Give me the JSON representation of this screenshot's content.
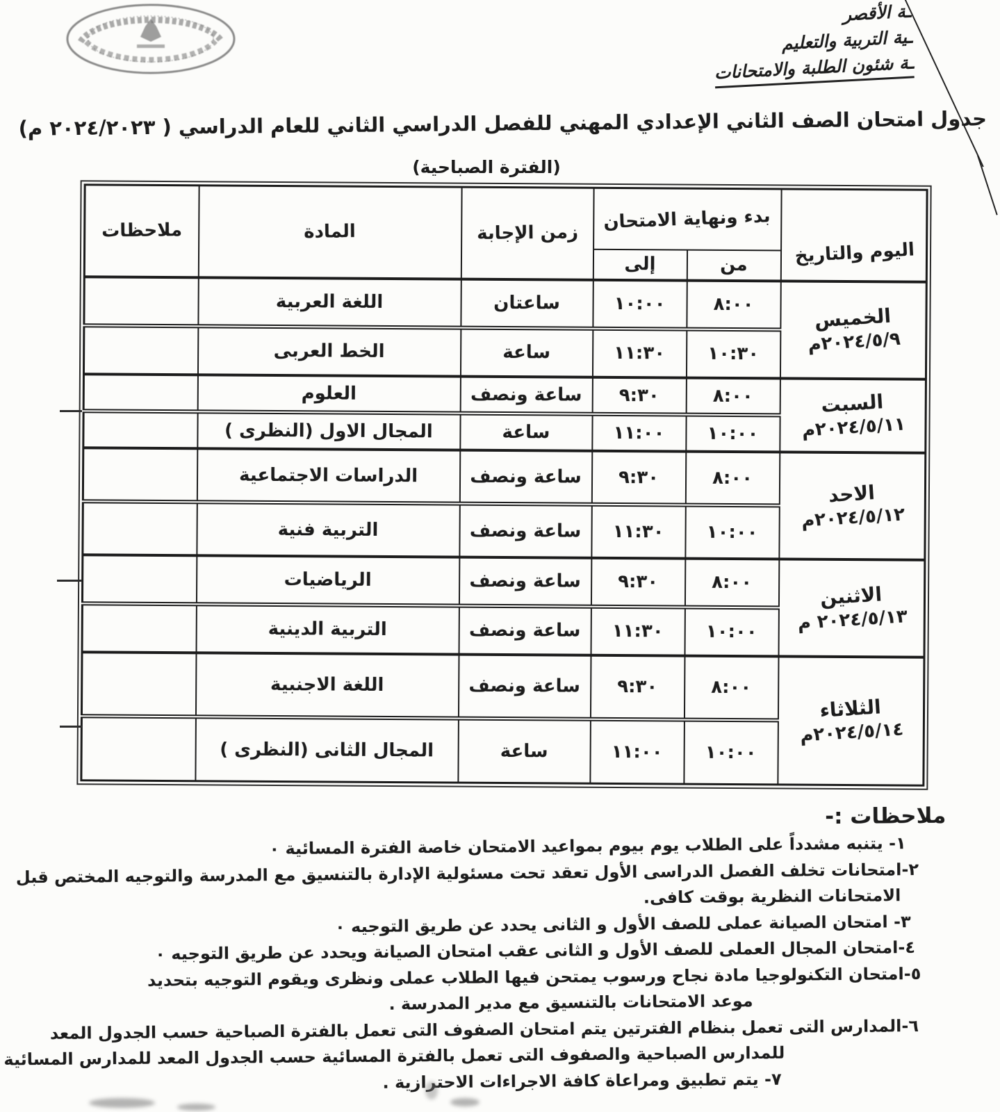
{
  "colors": {
    "ink": "#1c1c1c",
    "paper": "#fcfcfa"
  },
  "letterhead": {
    "lines": [
      "ـة الأقصر",
      "ـية التربية والتعليم",
      "ـة شئون الطلبة والامتحانات"
    ]
  },
  "stamp": {
    "icon": "official-oval-seal-with-eagle-emblem"
  },
  "title": "جدول امتحان الصف الثاني الإعدادي المهني  للفصل الدراسي الثاني للعام الدراسي ( ٢٠٢٤/٢٠٢٣ م)",
  "subtitle": "(الفترة الصباحية)",
  "table": {
    "headers": {
      "day": "اليوم والتاريخ",
      "exam_window": "بدء ونهاية الامتحان",
      "from": "من",
      "to": "إلى",
      "duration": "زمن الإجابة",
      "subject": "المادة",
      "notes": "ملاحظات"
    },
    "days": [
      {
        "name": "الخميس",
        "date": "٢٠٢٤/٥/٩م",
        "exams": [
          {
            "subject": "اللغة العربية",
            "duration": "ساعتان",
            "from": "٨:٠٠",
            "to": "١٠:٠٠",
            "notes": ""
          },
          {
            "subject": "الخط العربى",
            "duration": "ساعة",
            "from": "١٠:٣٠",
            "to": "١١:٣٠",
            "notes": ""
          }
        ]
      },
      {
        "name": "السبت",
        "date": "٢٠٢٤/٥/١١م",
        "exams": [
          {
            "subject": "العلوم",
            "duration": "ساعة ونصف",
            "from": "٨:٠٠",
            "to": "٩:٣٠",
            "notes": ""
          },
          {
            "subject": "المجال الاول (النظرى )",
            "duration": "ساعة",
            "from": "١٠:٠٠",
            "to": "١١:٠٠",
            "notes": ""
          }
        ]
      },
      {
        "name": "الاحد",
        "date": "٢٠٢٤/٥/١٢م",
        "exams": [
          {
            "subject": "الدراسات الاجتماعية",
            "duration": "ساعة ونصف",
            "from": "٨:٠٠",
            "to": "٩:٣٠",
            "notes": ""
          },
          {
            "subject": "التربية فنية",
            "duration": "ساعة ونصف",
            "from": "١٠:٠٠",
            "to": "١١:٣٠",
            "notes": ""
          }
        ]
      },
      {
        "name": "الاثنين",
        "date": "٢٠٢٤/٥/١٣ م",
        "exams": [
          {
            "subject": "الرياضيات",
            "duration": "ساعة ونصف",
            "from": "٨:٠٠",
            "to": "٩:٣٠",
            "notes": ""
          },
          {
            "subject": "التربية الدينية",
            "duration": "ساعة ونصف",
            "from": "١٠:٠٠",
            "to": "١١:٣٠",
            "notes": ""
          }
        ]
      },
      {
        "name": "الثلاثاء",
        "date": "٢٠٢٤/٥/١٤م",
        "exams": [
          {
            "subject": "اللغة الاجنبية",
            "duration": "ساعة ونصف",
            "from": "٨:٠٠",
            "to": "٩:٣٠",
            "notes": ""
          },
          {
            "subject": "المجال الثانى (النظرى )",
            "duration": "ساعة",
            "from": "١٠:٠٠",
            "to": "١١:٠٠",
            "notes": ""
          }
        ]
      }
    ]
  },
  "notes": {
    "header": "ملاحظات :-",
    "lines": [
      "١- يتنبه مشدداً على الطلاب يوم بيوم بمواعيد الامتحان خاصة الفترة المسائية ٠",
      "٢-امتحانات تخلف الفصل الدراسى الأول تعقد تحت مسئولية الإدارة بالتنسيق مع المدرسة والتوجيه المختص قبل",
      "الامتحانات النظرية بوقت كافى.",
      "٣- امتحان الصيانة عملى للصف الأول و الثانى يحدد عن طريق التوجيه ٠",
      "٤-امتحان المجال العملى للصف الأول و الثانى عقب امتحان الصيانة ويحدد عن طريق التوجيه ٠",
      "٥-امتحان التكنولوجيا مادة نجاح ورسوب يمتحن فيها الطلاب عملى ونظرى ويقوم التوجيه بتحديد",
      "موعد الامتحانات بالتنسيق مع مدير المدرسة .",
      "٦-المدارس التى تعمل بنظام الفترتين يتم امتحان الصفوف التى تعمل بالفترة الصباحية حسب الجدول المعد",
      "للمدارس الصباحية والصفوف التى تعمل بالفترة المسائية حسب الجدول المعد للمدارس المسائية ٠",
      "٧- يتم تطبيق ومراعاة كافة الاجراءات الاحترازية ."
    ]
  }
}
